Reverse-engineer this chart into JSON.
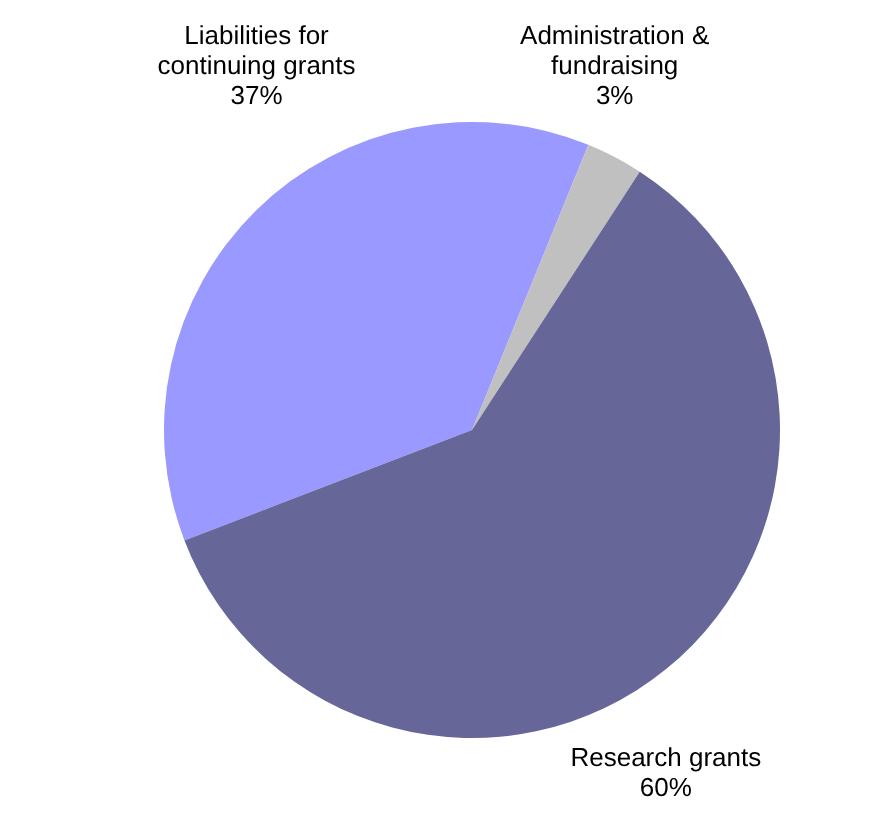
{
  "chart_data": {
    "type": "pie",
    "categories": [
      "Liabilities for continuing grants",
      "Administration & fundraising",
      "Research grants"
    ],
    "values": [
      37,
      3,
      60
    ],
    "value_labels": [
      "37%",
      "3%",
      "60%"
    ],
    "colors": [
      "#9999ff",
      "#c0c0c0",
      "#666699"
    ],
    "legend": false
  }
}
